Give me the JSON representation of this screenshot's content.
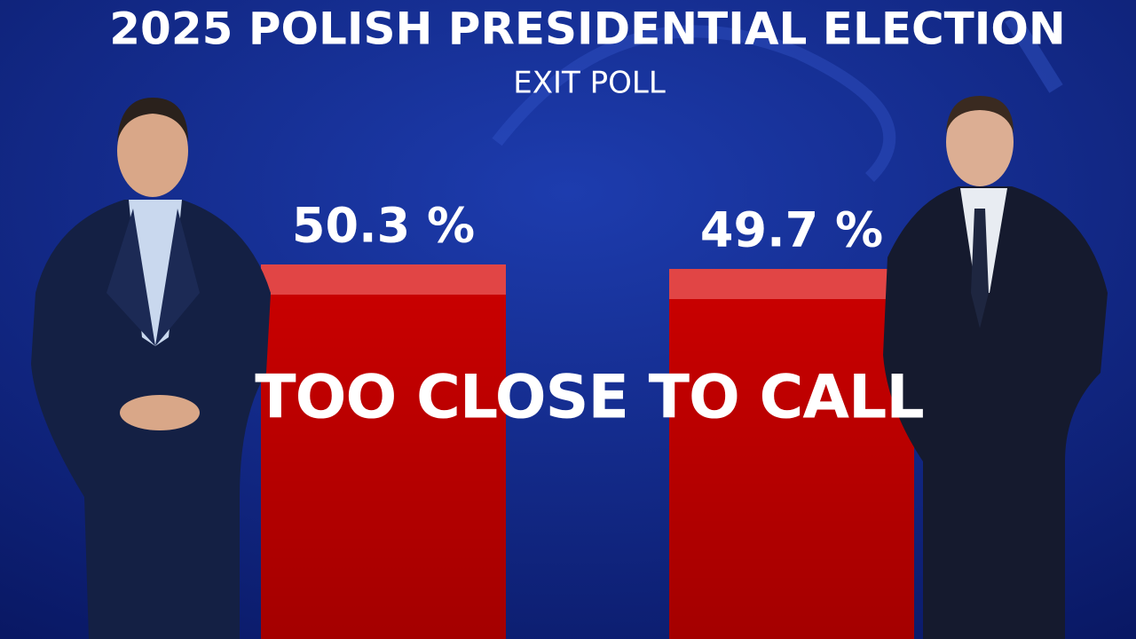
{
  "chart_data": {
    "type": "bar",
    "title": "2025 POLISH PRESIDENTIAL ELECTION",
    "subtitle": "EXIT POLL",
    "annotation": "TOO CLOSE TO CALL",
    "values": [
      50.3,
      49.7
    ],
    "value_labels": [
      "50.3 %",
      "49.7 %"
    ],
    "color": "#c80000"
  }
}
